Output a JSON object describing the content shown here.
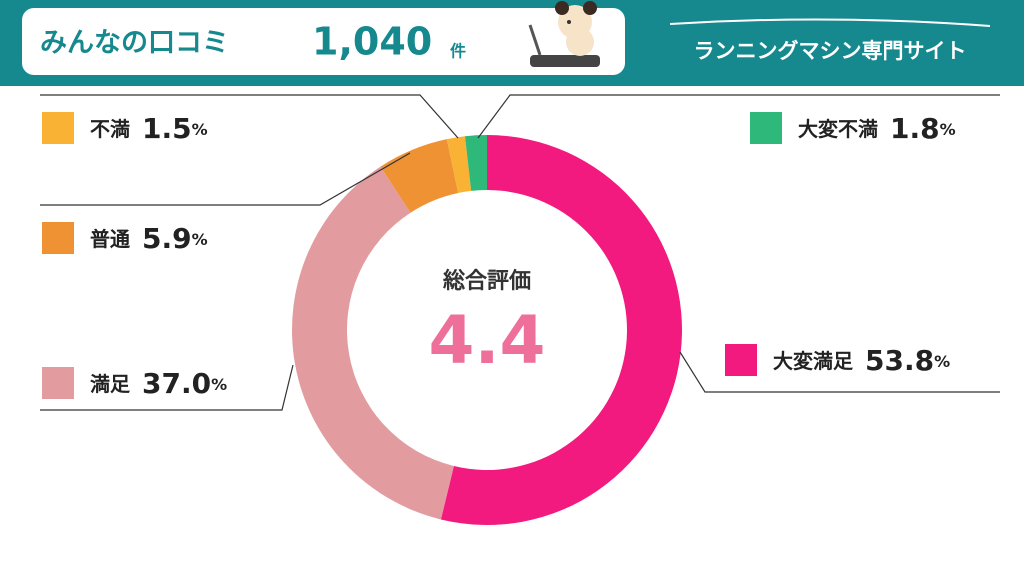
{
  "header": {
    "title": "みんなの口コミ",
    "count": "1,040",
    "count_unit": "件",
    "site_name": "ランニングマシン専門サイト"
  },
  "chart_data": {
    "type": "donut",
    "center_title": "総合評価",
    "center_value": 4.4,
    "categories": [
      "大変満足",
      "満足",
      "普通",
      "不満",
      "大変不満"
    ],
    "values": [
      53.8,
      37.0,
      5.9,
      1.5,
      1.8
    ],
    "value_labels": [
      "53.8",
      "37.0",
      "5.9",
      "1.5",
      "1.8"
    ],
    "unit": "%",
    "colors": [
      "#f21a7e",
      "#e29ca0",
      "#ef9234",
      "#f9b233",
      "#2eb87a"
    ]
  }
}
